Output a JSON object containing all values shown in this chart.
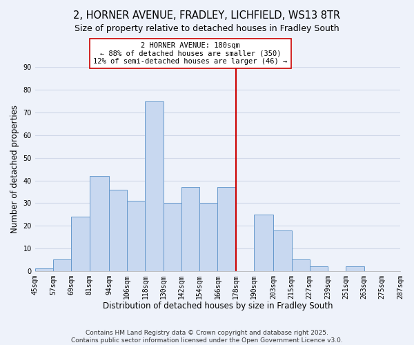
{
  "title": "2, HORNER AVENUE, FRADLEY, LICHFIELD, WS13 8TR",
  "subtitle": "Size of property relative to detached houses in Fradley South",
  "xlabel": "Distribution of detached houses by size in Fradley South",
  "ylabel": "Number of detached properties",
  "bins": [
    45,
    57,
    69,
    81,
    94,
    106,
    118,
    130,
    142,
    154,
    166,
    178,
    190,
    203,
    215,
    227,
    239,
    251,
    263,
    275,
    287
  ],
  "bin_labels": [
    "45sqm",
    "57sqm",
    "69sqm",
    "81sqm",
    "94sqm",
    "106sqm",
    "118sqm",
    "130sqm",
    "142sqm",
    "154sqm",
    "166sqm",
    "178sqm",
    "190sqm",
    "203sqm",
    "215sqm",
    "227sqm",
    "239sqm",
    "251sqm",
    "263sqm",
    "275sqm",
    "287sqm"
  ],
  "values": [
    1,
    5,
    24,
    42,
    36,
    31,
    75,
    30,
    37,
    30,
    37,
    0,
    25,
    18,
    5,
    2,
    0,
    2,
    0,
    0
  ],
  "bar_color": "#c8d8f0",
  "bar_edge_color": "#6699cc",
  "vline_x": 178,
  "vline_color": "#cc0000",
  "annotation_line1": "2 HORNER AVENUE: 180sqm",
  "annotation_line2": "← 88% of detached houses are smaller (350)",
  "annotation_line3": "12% of semi-detached houses are larger (46) →",
  "annotation_box_color": "#ffffff",
  "annotation_box_edge": "#cc0000",
  "ylim": [
    0,
    90
  ],
  "yticks": [
    0,
    10,
    20,
    30,
    40,
    50,
    60,
    70,
    80,
    90
  ],
  "footer_line1": "Contains HM Land Registry data © Crown copyright and database right 2025.",
  "footer_line2": "Contains public sector information licensed under the Open Government Licence v3.0.",
  "background_color": "#eef2fa",
  "grid_color": "#d0d8e8",
  "title_fontsize": 10.5,
  "subtitle_fontsize": 9,
  "axis_label_fontsize": 8.5,
  "tick_fontsize": 7,
  "annotation_fontsize": 7.5,
  "footer_fontsize": 6.5
}
